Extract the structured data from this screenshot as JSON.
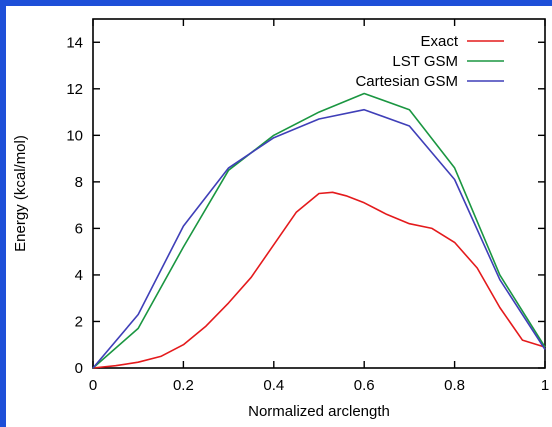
{
  "chart_data": {
    "type": "line",
    "title": "",
    "xlabel": "Normalized arclength",
    "ylabel": "Energy (kcal/mol)",
    "xlim": [
      0,
      1
    ],
    "ylim": [
      0,
      15
    ],
    "x_ticks": [
      0,
      0.2,
      0.4,
      0.6,
      0.8,
      1
    ],
    "x_tick_labels": [
      "0",
      "0.2",
      "0.4",
      "0.6",
      "0.8",
      "1"
    ],
    "y_ticks": [
      0,
      2,
      4,
      6,
      8,
      10,
      12,
      14
    ],
    "y_tick_labels": [
      "0",
      "2",
      "4",
      "6",
      "8",
      "10",
      "12",
      "14"
    ],
    "grid": false,
    "legend_position": "top-right",
    "series": [
      {
        "name": "Exact",
        "color": "#e41a1c",
        "x": [
          0,
          0.05,
          0.1,
          0.15,
          0.2,
          0.25,
          0.3,
          0.35,
          0.4,
          0.45,
          0.5,
          0.53,
          0.56,
          0.6,
          0.65,
          0.7,
          0.75,
          0.8,
          0.85,
          0.9,
          0.95,
          1.0
        ],
        "y": [
          0,
          0.1,
          0.25,
          0.5,
          1.0,
          1.8,
          2.8,
          3.9,
          5.3,
          6.7,
          7.5,
          7.55,
          7.4,
          7.1,
          6.6,
          6.2,
          6.0,
          5.4,
          4.3,
          2.6,
          1.2,
          0.9
        ]
      },
      {
        "name": "LST GSM",
        "color": "#1a9641",
        "x": [
          0,
          0.1,
          0.2,
          0.3,
          0.4,
          0.5,
          0.6,
          0.7,
          0.8,
          0.9,
          1.0
        ],
        "y": [
          0,
          1.7,
          5.2,
          8.5,
          10.0,
          11.0,
          11.8,
          11.1,
          8.6,
          4.0,
          0.9
        ]
      },
      {
        "name": "Cartesian GSM",
        "color": "#3f3fb8",
        "x": [
          0,
          0.1,
          0.2,
          0.3,
          0.4,
          0.5,
          0.6,
          0.7,
          0.8,
          0.9,
          1.0
        ],
        "y": [
          0,
          2.3,
          6.1,
          8.6,
          9.9,
          10.7,
          11.1,
          10.4,
          8.1,
          3.8,
          0.8
        ]
      }
    ]
  }
}
